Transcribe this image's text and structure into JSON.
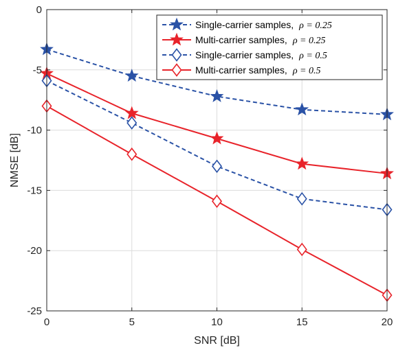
{
  "chart_data": {
    "type": "line",
    "title": "",
    "xlabel": "SNR [dB]",
    "ylabel": "NMSE [dB]",
    "xlim": [
      0,
      20
    ],
    "ylim": [
      -25,
      0
    ],
    "x_ticks": [
      0,
      5,
      10,
      15,
      20
    ],
    "y_ticks": [
      0,
      -5,
      -10,
      -15,
      -20,
      -25
    ],
    "grid": true,
    "legend_position": "top-right",
    "x": [
      0,
      5,
      10,
      15,
      20
    ],
    "series": [
      {
        "name": "Single-carrier samples,",
        "rho_label": "ρ = 0.25",
        "values": [
          -3.3,
          -5.5,
          -7.2,
          -8.3,
          -8.7
        ],
        "color": "#2a52a6",
        "line_style": "dashed",
        "marker": "star",
        "marker_filled": true
      },
      {
        "name": "Multi-carrier samples,",
        "rho_label": "ρ = 0.25",
        "values": [
          -5.3,
          -8.6,
          -10.7,
          -12.8,
          -13.6
        ],
        "color": "#e8232a",
        "line_style": "solid",
        "marker": "star",
        "marker_filled": true
      },
      {
        "name": "Single-carrier samples,",
        "rho_label": "ρ = 0.5",
        "values": [
          -5.9,
          -9.4,
          -13.0,
          -15.7,
          -16.6
        ],
        "color": "#2a52a6",
        "line_style": "dashed",
        "marker": "diamond",
        "marker_filled": false
      },
      {
        "name": "Multi-carrier samples,",
        "rho_label": "ρ = 0.5",
        "values": [
          -8.0,
          -12.0,
          -15.9,
          -19.9,
          -23.7
        ],
        "color": "#e8232a",
        "line_style": "solid",
        "marker": "diamond",
        "marker_filled": false
      }
    ]
  }
}
